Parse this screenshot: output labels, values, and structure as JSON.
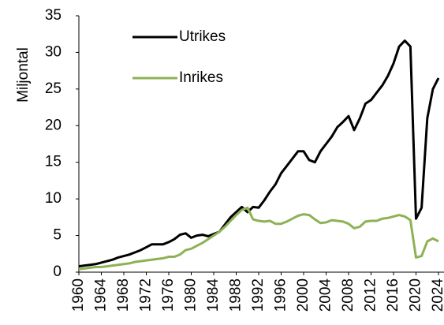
{
  "chart_data": {
    "type": "line",
    "y_label": "Miljontal",
    "x": [
      1960,
      1961,
      1962,
      1963,
      1964,
      1965,
      1966,
      1967,
      1968,
      1969,
      1970,
      1971,
      1972,
      1973,
      1974,
      1975,
      1976,
      1977,
      1978,
      1979,
      1980,
      1981,
      1982,
      1983,
      1984,
      1985,
      1986,
      1987,
      1988,
      1989,
      1990,
      1991,
      1992,
      1993,
      1994,
      1995,
      1996,
      1997,
      1998,
      1999,
      2000,
      2001,
      2002,
      2003,
      2004,
      2005,
      2006,
      2007,
      2008,
      2009,
      2010,
      2011,
      2012,
      2013,
      2014,
      2015,
      2016,
      2017,
      2018,
      2019,
      2020,
      2021,
      2022,
      2023,
      2024
    ],
    "series": [
      {
        "name": "Utrikes",
        "color": "#000000",
        "values": [
          0.8,
          0.9,
          1.0,
          1.1,
          1.3,
          1.5,
          1.7,
          2.0,
          2.2,
          2.4,
          2.7,
          3.0,
          3.4,
          3.8,
          3.8,
          3.8,
          4.1,
          4.5,
          5.1,
          5.3,
          4.7,
          5.0,
          5.1,
          4.9,
          5.2,
          5.5,
          6.5,
          7.5,
          8.2,
          8.9,
          8.2,
          8.9,
          8.8,
          9.8,
          11.0,
          12.0,
          13.5,
          14.5,
          15.5,
          16.5,
          16.5,
          15.3,
          15.0,
          16.5,
          17.5,
          18.5,
          19.8,
          20.5,
          21.3,
          19.4,
          21.0,
          23.0,
          23.5,
          24.5,
          25.5,
          26.8,
          28.5,
          30.8,
          31.6,
          30.8,
          7.3,
          8.8,
          21.0,
          25.0,
          26.5
        ]
      },
      {
        "name": "Inrikes",
        "color": "#8db255",
        "values": [
          0.4,
          0.5,
          0.6,
          0.7,
          0.7,
          0.8,
          0.9,
          1.0,
          1.1,
          1.2,
          1.4,
          1.5,
          1.6,
          1.7,
          1.8,
          1.9,
          2.1,
          2.1,
          2.4,
          3.0,
          3.2,
          3.6,
          4.0,
          4.5,
          5.0,
          5.5,
          6.2,
          7.0,
          7.8,
          8.5,
          8.8,
          7.2,
          7.0,
          6.9,
          7.0,
          6.6,
          6.6,
          6.9,
          7.3,
          7.7,
          7.9,
          7.8,
          7.2,
          6.7,
          6.8,
          7.1,
          7.0,
          6.9,
          6.6,
          6.0,
          6.2,
          6.9,
          7.0,
          7.0,
          7.3,
          7.4,
          7.6,
          7.8,
          7.6,
          7.1,
          2.0,
          2.2,
          4.2,
          4.6,
          4.2
        ]
      }
    ],
    "xlim": [
      1960,
      2024
    ],
    "xticks": [
      1960,
      1964,
      1968,
      1972,
      1976,
      1980,
      1984,
      1988,
      1992,
      1996,
      2000,
      2004,
      2008,
      2012,
      2016,
      2020,
      2024
    ],
    "ylim": [
      0,
      35
    ],
    "yticks": [
      0,
      5,
      10,
      15,
      20,
      25,
      30,
      35
    ],
    "grid": false,
    "legend": "upper left"
  }
}
